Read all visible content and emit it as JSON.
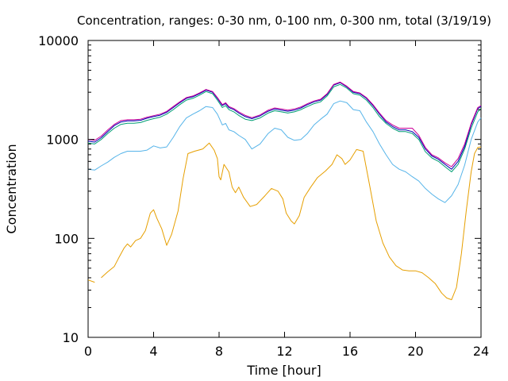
{
  "chart_data": {
    "type": "line",
    "title": "Concentration, ranges: 0-30 nm, 0-100 nm, 0-300 nm, total (3/19/19)",
    "xlabel": "Time [hour]",
    "ylabel": "Concentration",
    "xlim": [
      0,
      24
    ],
    "ylim": [
      10,
      10000
    ],
    "yscale": "log",
    "x_ticks": [
      0,
      4,
      8,
      12,
      16,
      20,
      24
    ],
    "x_tick_labels": [
      "0",
      "4",
      "8",
      "12",
      "16",
      "20",
      "24"
    ],
    "y_ticks": [
      10,
      100,
      1000,
      10000
    ],
    "y_tick_labels": [
      "10",
      "100",
      "1000",
      "10000"
    ],
    "grid": false,
    "legend": false,
    "series": [
      {
        "color": "#e69f00",
        "x": [
          0,
          0.4,
          0.6,
          0.8,
          1.2,
          1.6,
          1.9,
          2.2,
          2.4,
          2.6,
          2.9,
          3.2,
          3.5,
          3.8,
          4.0,
          4.2,
          4.5,
          4.8,
          5.1,
          5.5,
          5.8,
          6.1,
          6.5,
          7.0,
          7.4,
          7.7,
          7.9,
          8.0,
          8.1,
          8.3,
          8.6,
          8.8,
          9.0,
          9.2,
          9.5,
          9.9,
          10.3,
          10.8,
          11.2,
          11.6,
          11.9,
          12.1,
          12.4,
          12.6,
          12.9,
          13.2,
          13.6,
          14.0,
          14.5,
          14.9,
          15.2,
          15.5,
          15.7,
          16.0,
          16.4,
          16.8,
          17.2,
          17.6,
          18.0,
          18.4,
          18.8,
          19.2,
          19.6,
          20.0,
          20.4,
          20.8,
          21.2,
          21.6,
          21.9,
          22.2,
          22.5,
          22.8,
          23.1,
          23.4,
          23.6,
          23.8,
          24.0
        ],
        "y": [
          38,
          36,
          null,
          40,
          46,
          52,
          65,
          80,
          88,
          82,
          95,
          100,
          120,
          180,
          195,
          160,
          125,
          85,
          110,
          190,
          400,
          720,
          760,
          800,
          920,
          780,
          640,
          420,
          390,
          560,
          470,
          330,
          290,
          330,
          260,
          210,
          220,
          270,
          320,
          300,
          250,
          180,
          150,
          140,
          170,
          260,
          330,
          410,
          480,
          560,
          700,
          640,
          560,
          620,
          790,
          760,
          340,
          150,
          90,
          65,
          53,
          48,
          47,
          47,
          45,
          40,
          35,
          28,
          25,
          24,
          32,
          70,
          190,
          470,
          720,
          830,
          840
        ]
      },
      {
        "color": "#56b4e9",
        "x": [
          0,
          0.4,
          0.8,
          1.2,
          1.6,
          2.0,
          2.4,
          2.8,
          3.2,
          3.6,
          4.0,
          4.4,
          4.8,
          5.2,
          5.6,
          6.0,
          6.4,
          6.8,
          7.2,
          7.6,
          7.9,
          8.2,
          8.4,
          8.6,
          8.9,
          9.2,
          9.6,
          10.0,
          10.5,
          11.0,
          11.4,
          11.8,
          12.2,
          12.6,
          13.0,
          13.4,
          13.8,
          14.2,
          14.6,
          15.0,
          15.4,
          15.8,
          16.2,
          16.6,
          17.0,
          17.4,
          17.8,
          18.2,
          18.6,
          19.0,
          19.4,
          19.8,
          20.2,
          20.6,
          21.0,
          21.4,
          21.8,
          22.2,
          22.6,
          23.0,
          23.4,
          23.8,
          24.0
        ],
        "y": [
          500,
          490,
          540,
          590,
          660,
          720,
          760,
          760,
          760,
          780,
          860,
          820,
          840,
          1050,
          1350,
          1650,
          1800,
          1950,
          2150,
          2100,
          1800,
          1400,
          1450,
          1250,
          1200,
          1100,
          1000,
          800,
          900,
          1150,
          1300,
          1250,
          1050,
          980,
          1000,
          1150,
          1400,
          1600,
          1800,
          2300,
          2450,
          2350,
          2000,
          1950,
          1500,
          1200,
          900,
          700,
          560,
          500,
          470,
          420,
          380,
          320,
          280,
          250,
          230,
          270,
          350,
          550,
          1000,
          1500,
          1650
        ]
      },
      {
        "color": "#009e73",
        "x": [
          0,
          0.4,
          0.8,
          1.2,
          1.6,
          2.0,
          2.4,
          2.8,
          3.2,
          3.6,
          4.0,
          4.4,
          4.8,
          5.2,
          5.6,
          6.0,
          6.4,
          6.8,
          7.2,
          7.6,
          7.9,
          8.2,
          8.4,
          8.6,
          8.9,
          9.2,
          9.6,
          10.0,
          10.5,
          11.0,
          11.4,
          11.8,
          12.2,
          12.6,
          13.0,
          13.4,
          13.8,
          14.2,
          14.6,
          15.0,
          15.4,
          15.8,
          16.2,
          16.6,
          17.0,
          17.4,
          17.8,
          18.2,
          18.6,
          19.0,
          19.4,
          19.8,
          20.2,
          20.6,
          21.0,
          21.4,
          21.8,
          22.2,
          22.6,
          23.0,
          23.4,
          23.8,
          24.0
        ],
        "y": [
          920,
          900,
          1000,
          1150,
          1300,
          1420,
          1460,
          1460,
          1480,
          1560,
          1620,
          1680,
          1800,
          2000,
          2250,
          2500,
          2600,
          2800,
          3050,
          2900,
          2500,
          2100,
          2200,
          2000,
          1900,
          1750,
          1600,
          1550,
          1650,
          1850,
          1950,
          1900,
          1850,
          1900,
          2000,
          2150,
          2300,
          2400,
          2750,
          3400,
          3600,
          3300,
          2900,
          2800,
          2500,
          2100,
          1700,
          1450,
          1300,
          1200,
          1200,
          1150,
          1000,
          750,
          650,
          600,
          530,
          470,
          560,
          800,
          1300,
          1900,
          2050
        ]
      },
      {
        "color": "#0000b3",
        "x": [
          0,
          0.4,
          0.8,
          1.2,
          1.6,
          2.0,
          2.4,
          2.8,
          3.2,
          3.6,
          4.0,
          4.4,
          4.8,
          5.2,
          5.6,
          6.0,
          6.4,
          6.8,
          7.2,
          7.6,
          7.9,
          8.2,
          8.4,
          8.6,
          8.9,
          9.2,
          9.6,
          10.0,
          10.5,
          11.0,
          11.4,
          11.8,
          12.2,
          12.6,
          13.0,
          13.4,
          13.8,
          14.2,
          14.6,
          15.0,
          15.4,
          15.8,
          16.2,
          16.6,
          17.0,
          17.4,
          17.8,
          18.2,
          18.6,
          19.0,
          19.4,
          19.8,
          20.2,
          20.6,
          21.0,
          21.4,
          21.8,
          22.2,
          22.6,
          23.0,
          23.4,
          23.8,
          24.0
        ],
        "y": [
          960,
          940,
          1040,
          1200,
          1380,
          1500,
          1540,
          1540,
          1560,
          1640,
          1700,
          1760,
          1880,
          2100,
          2350,
          2600,
          2700,
          2900,
          3150,
          3000,
          2600,
          2200,
          2300,
          2100,
          2000,
          1850,
          1700,
          1620,
          1730,
          1930,
          2030,
          1980,
          1930,
          1980,
          2080,
          2250,
          2400,
          2500,
          2850,
          3550,
          3750,
          3400,
          3000,
          2900,
          2600,
          2200,
          1800,
          1500,
          1350,
          1250,
          1250,
          1200,
          1050,
          800,
          680,
          630,
          560,
          500,
          600,
          850,
          1400,
          2050,
          2150
        ]
      },
      {
        "color": "#cc0099",
        "x": [
          0,
          0.4,
          0.8,
          1.2,
          1.6,
          2.0,
          2.4,
          2.8,
          3.2,
          3.6,
          4.0,
          4.4,
          4.8,
          5.2,
          5.6,
          6.0,
          6.4,
          6.8,
          7.2,
          7.6,
          7.9,
          8.2,
          8.4,
          8.6,
          8.9,
          9.2,
          9.6,
          10.0,
          10.5,
          11.0,
          11.4,
          11.8,
          12.2,
          12.6,
          13.0,
          13.4,
          13.8,
          14.2,
          14.6,
          15.0,
          15.4,
          15.8,
          16.2,
          16.6,
          17.0,
          17.4,
          17.8,
          18.2,
          18.6,
          19.0,
          19.4,
          19.8,
          20.2,
          20.6,
          21.0,
          21.4,
          21.8,
          22.2,
          22.6,
          23.0,
          23.4,
          23.8,
          24.0
        ],
        "y": [
          1000,
          980,
          1080,
          1250,
          1420,
          1550,
          1580,
          1580,
          1600,
          1680,
          1740,
          1800,
          1920,
          2150,
          2400,
          2650,
          2750,
          2950,
          3200,
          3050,
          2650,
          2250,
          2350,
          2150,
          2050,
          1900,
          1750,
          1660,
          1770,
          1980,
          2080,
          2030,
          1980,
          2030,
          2130,
          2300,
          2450,
          2550,
          2900,
          3600,
          3800,
          3450,
          3050,
          2950,
          2650,
          2250,
          1850,
          1550,
          1400,
          1300,
          1300,
          1300,
          1100,
          830,
          700,
          650,
          580,
          530,
          640,
          900,
          1450,
          2100,
          2200
        ]
      }
    ]
  }
}
